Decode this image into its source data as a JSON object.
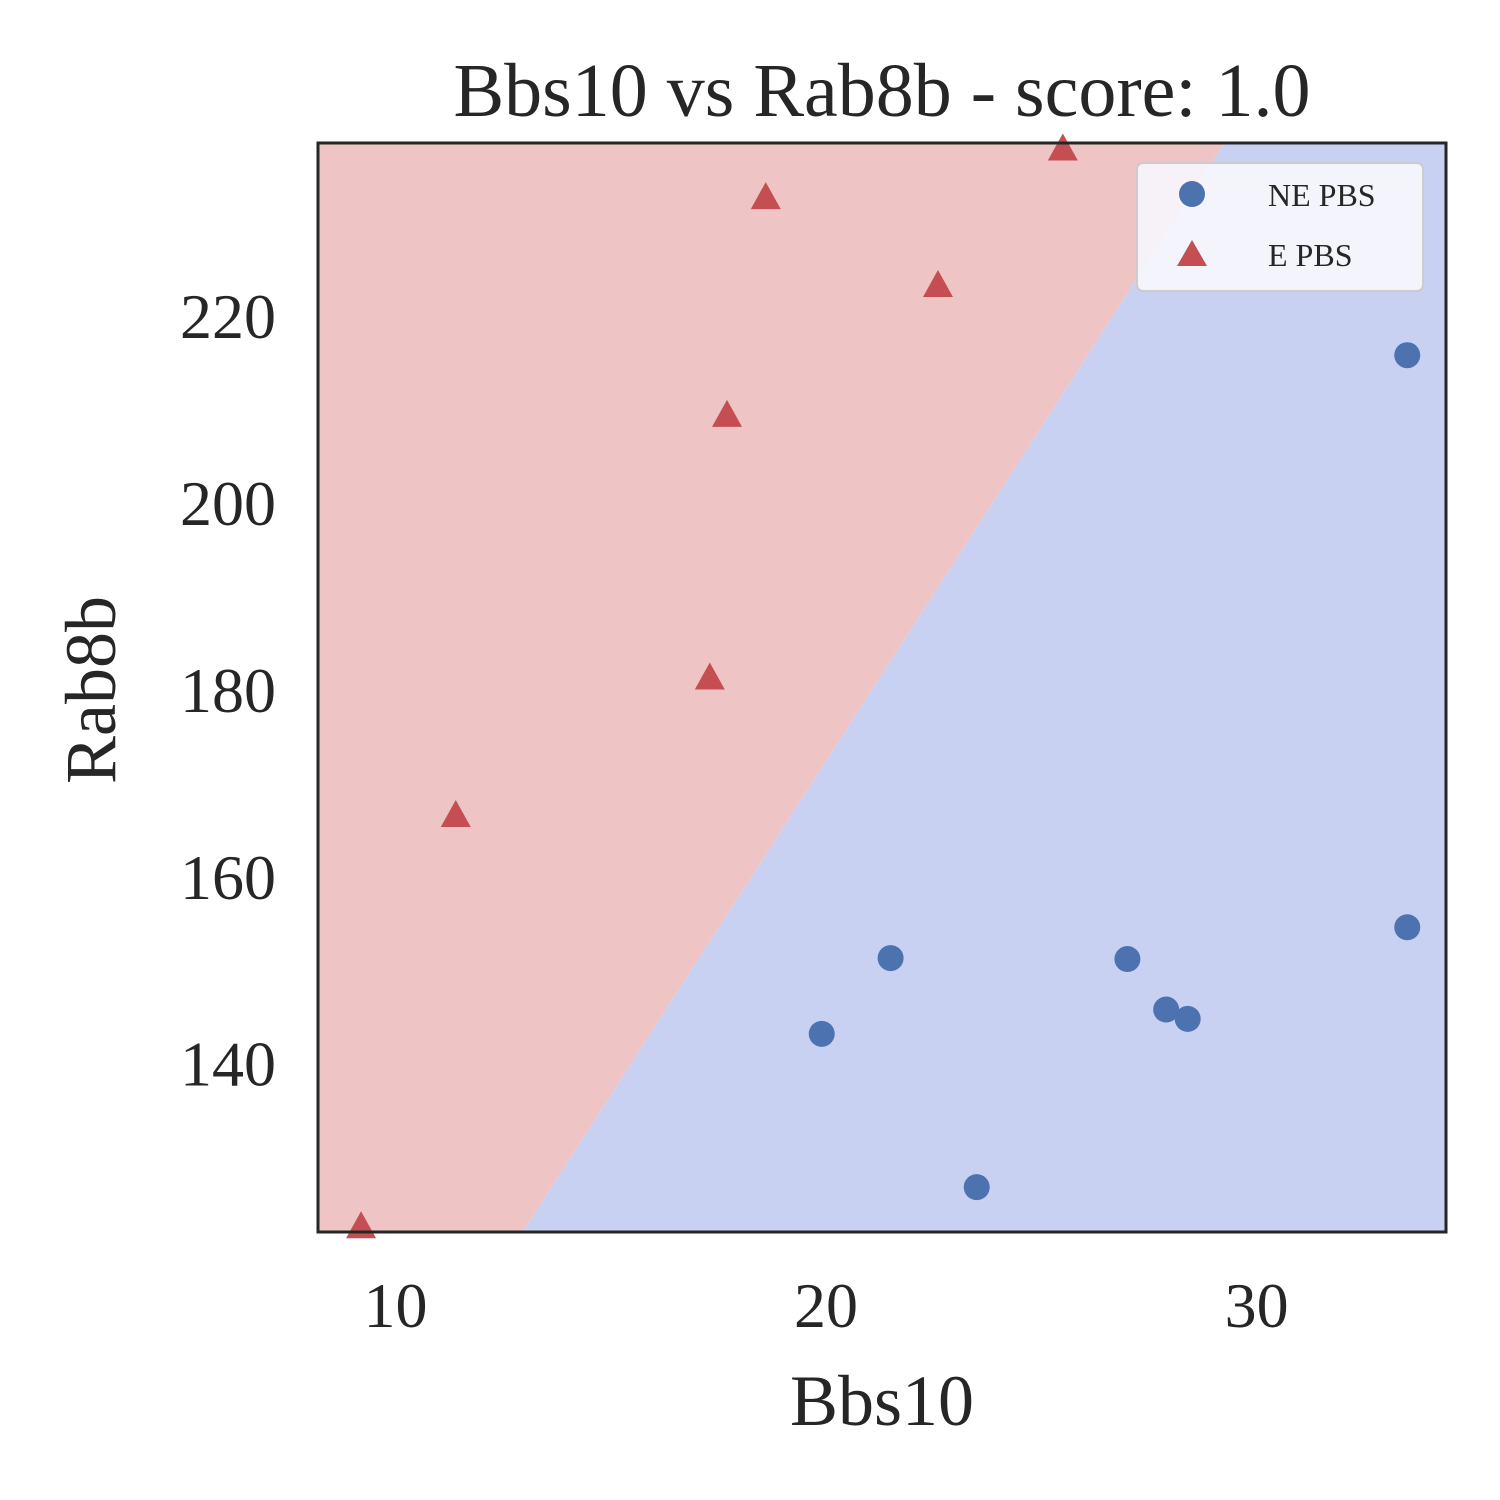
{
  "chart_data": {
    "type": "scatter",
    "title": "Bbs10 vs Rab8b - score: 1.0",
    "xlabel": "Bbs10",
    "ylabel": "Rab8b",
    "xlim": [
      8.2,
      34.4
    ],
    "ylim": [
      122.0,
      238.5
    ],
    "xticks": [
      10,
      20,
      30
    ],
    "yticks": [
      140,
      160,
      180,
      200,
      220
    ],
    "grid": false,
    "legend_position": "top-right",
    "decision_boundary": {
      "points": [
        [
          12.95,
          122.0
        ],
        [
          29.25,
          238.5
        ]
      ],
      "fill_left_color": "#eec4c4",
      "fill_right_color": "#c9d1f2"
    },
    "series": [
      {
        "name": "NE PBS",
        "marker": "circle",
        "color": "#4c72b0",
        "points": [
          [
            19.9,
            143.2
          ],
          [
            21.5,
            151.3
          ],
          [
            23.5,
            126.8
          ],
          [
            27.0,
            151.2
          ],
          [
            27.9,
            145.8
          ],
          [
            28.4,
            144.8
          ],
          [
            33.5,
            154.6
          ],
          [
            33.5,
            215.8
          ]
        ]
      },
      {
        "name": "E PBS",
        "marker": "triangle",
        "color": "#c44e52",
        "points": [
          [
            9.2,
            122.4
          ],
          [
            11.4,
            166.4
          ],
          [
            17.3,
            181.1
          ],
          [
            17.7,
            209.2
          ],
          [
            18.6,
            232.5
          ],
          [
            22.6,
            223.1
          ],
          [
            25.5,
            237.7
          ]
        ]
      }
    ]
  }
}
